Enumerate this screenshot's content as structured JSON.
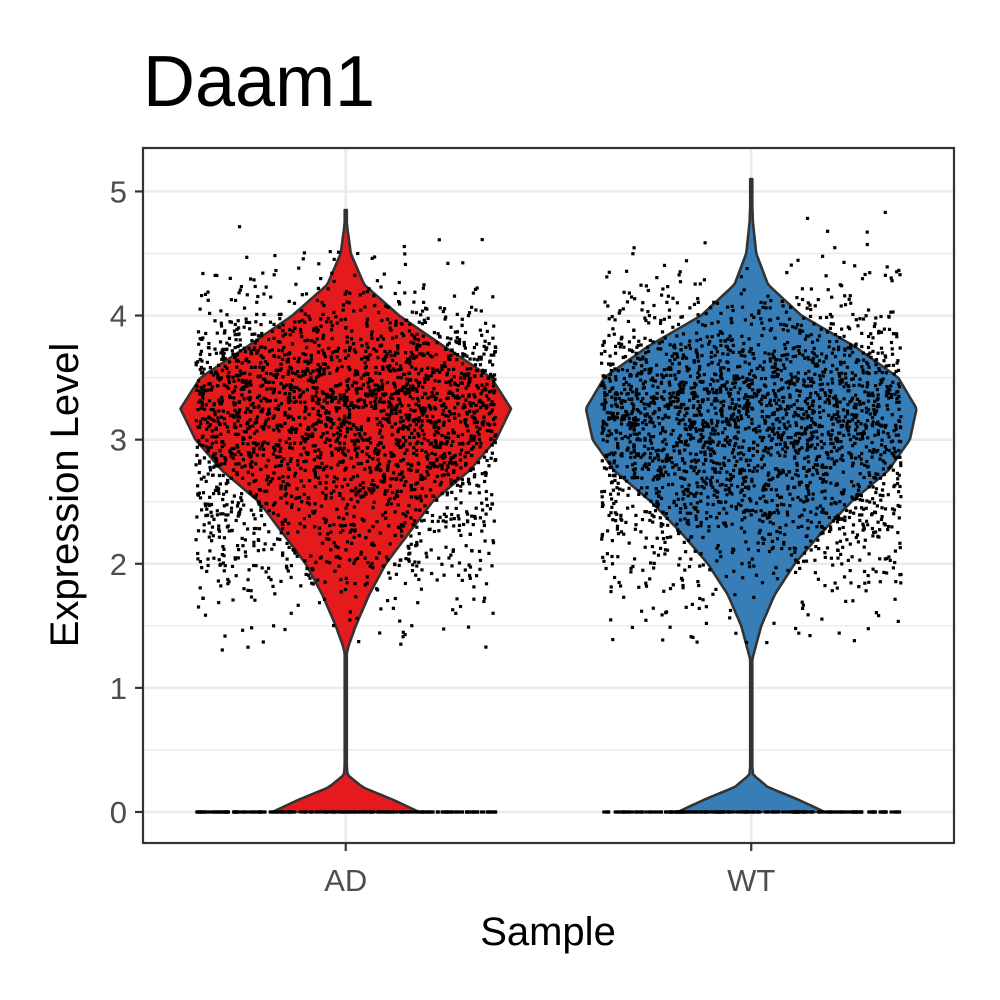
{
  "chart_data": {
    "type": "violin",
    "title": "Daam1",
    "xlabel": "Sample",
    "ylabel": "Expression Level",
    "categories": [
      "AD",
      "WT"
    ],
    "y_ticks": [
      0,
      1,
      2,
      3,
      4,
      5
    ],
    "ylim": [
      -0.25,
      5.35
    ],
    "grid": true,
    "series": [
      {
        "name": "AD",
        "color": "#E41A1C",
        "min": 0,
        "max": 4.85,
        "mode": 3.27,
        "zero_fraction_visible": true,
        "density_profile": [
          [
            0.0,
            0.44
          ],
          [
            0.1,
            0.28
          ],
          [
            0.2,
            0.1
          ],
          [
            0.3,
            0.01
          ],
          [
            0.5,
            0.0
          ],
          [
            1.0,
            0.0
          ],
          [
            1.25,
            0.0
          ],
          [
            1.35,
            0.02
          ],
          [
            1.5,
            0.06
          ],
          [
            1.75,
            0.14
          ],
          [
            2.0,
            0.24
          ],
          [
            2.25,
            0.38
          ],
          [
            2.5,
            0.52
          ],
          [
            2.75,
            0.74
          ],
          [
            3.0,
            0.9
          ],
          [
            3.25,
            0.99
          ],
          [
            3.5,
            0.87
          ],
          [
            3.75,
            0.59
          ],
          [
            4.0,
            0.32
          ],
          [
            4.25,
            0.11
          ],
          [
            4.5,
            0.03
          ],
          [
            4.7,
            0.01
          ],
          [
            4.85,
            0.0
          ]
        ]
      },
      {
        "name": "WT",
        "color": "#377EB8",
        "min": 0,
        "max": 5.1,
        "mode": 3.25,
        "zero_fraction_visible": true,
        "density_profile": [
          [
            0.0,
            0.44
          ],
          [
            0.1,
            0.28
          ],
          [
            0.2,
            0.1
          ],
          [
            0.3,
            0.01
          ],
          [
            0.5,
            0.0
          ],
          [
            1.0,
            0.0
          ],
          [
            1.2,
            0.0
          ],
          [
            1.3,
            0.02
          ],
          [
            1.5,
            0.06
          ],
          [
            1.75,
            0.14
          ],
          [
            2.0,
            0.26
          ],
          [
            2.25,
            0.42
          ],
          [
            2.5,
            0.6
          ],
          [
            2.75,
            0.82
          ],
          [
            3.0,
            0.95
          ],
          [
            3.25,
            0.99
          ],
          [
            3.5,
            0.88
          ],
          [
            3.75,
            0.62
          ],
          [
            4.0,
            0.3
          ],
          [
            4.25,
            0.1
          ],
          [
            4.5,
            0.03
          ],
          [
            4.75,
            0.01
          ],
          [
            5.1,
            0.0
          ]
        ]
      }
    ],
    "jitter_points": true,
    "point_color": "#000000"
  }
}
